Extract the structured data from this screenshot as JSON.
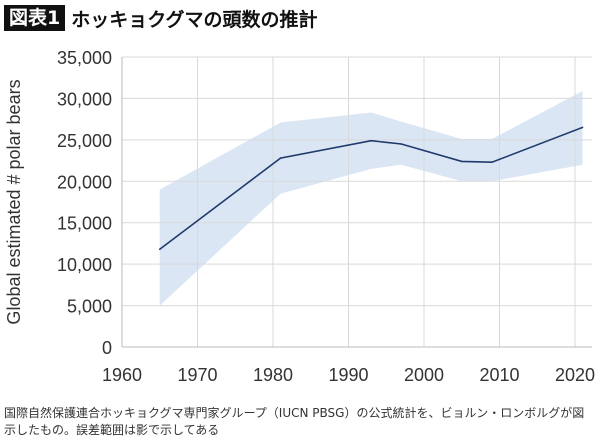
{
  "header": {
    "badge": "図表1",
    "title": "ホッキョクグマの頭数の推計"
  },
  "caption": "国際自然保護連合ホッキョクグマ専門家グループ（IUCN PBSG）の公式統計を、ビョルン・ロンボルグが図示したもの。誤差範囲は影で示してある",
  "chart_data": {
    "type": "line",
    "title": "",
    "xlabel": "",
    "ylabel": "Global estimated # polar bears",
    "xlim": [
      1960,
      2022
    ],
    "ylim": [
      0,
      35000
    ],
    "xticks": [
      "1960",
      "1970",
      "1980",
      "1990",
      "2000",
      "2010",
      "2020"
    ],
    "yticks": [
      "0",
      "5,000",
      "10,000",
      "15,000",
      "20,000",
      "25,000",
      "30,000",
      "35,000"
    ],
    "grid": true,
    "x": [
      1965,
      1981,
      1993,
      1997,
      2005,
      2009,
      2021
    ],
    "series": [
      {
        "values": [
          11800,
          22800,
          24900,
          24500,
          22400,
          22300,
          26500
        ]
      }
    ],
    "band": {
      "upper": [
        19000,
        27100,
        28300,
        27200,
        25100,
        25100,
        30900
      ],
      "lower": [
        5000,
        18500,
        21500,
        22000,
        20000,
        20000,
        22000
      ]
    },
    "colors": {
      "line": "#1f3a6b",
      "band": "#dbe6f5",
      "grid": "#d9d9d9"
    }
  }
}
